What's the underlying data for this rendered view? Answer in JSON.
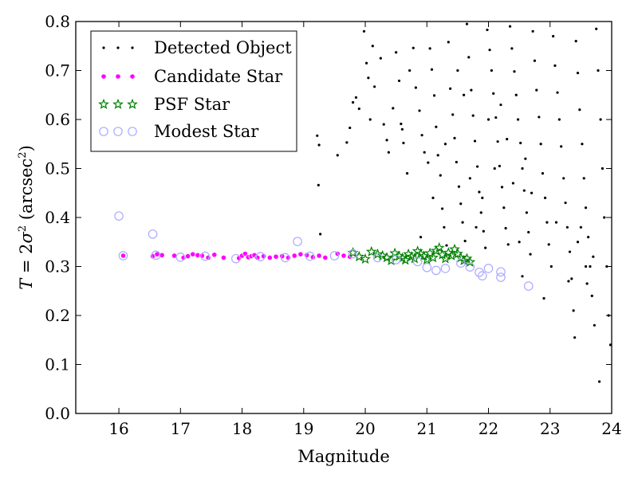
{
  "chart_data": {
    "type": "scatter",
    "xlabel": "Magnitude",
    "ylabel": "T = 2σ² (arcsec²)",
    "xlim": [
      15.3,
      24.0
    ],
    "ylim": [
      0.0,
      0.8
    ],
    "xticks": [
      16,
      17,
      18,
      19,
      20,
      21,
      22,
      23,
      24
    ],
    "yticks": [
      0.0,
      0.1,
      0.2,
      0.3,
      0.4,
      0.5,
      0.6,
      0.7,
      0.8
    ],
    "grid": false,
    "legend_position": "top-left",
    "legend": [
      {
        "label": "Detected Object",
        "marker": "dot",
        "color": "#000000"
      },
      {
        "label": "Candidate Star",
        "marker": "circle",
        "color": "#ff00ff"
      },
      {
        "label": "PSF Star",
        "marker": "star",
        "color": "#008000"
      },
      {
        "label": "Modest Star",
        "marker": "open-circle",
        "color": "#aaaaff"
      }
    ],
    "series": [
      {
        "name": "Detected Object",
        "points": [
          [
            19.22,
            0.567
          ],
          [
            19.25,
            0.548
          ],
          [
            19.24,
            0.466
          ],
          [
            19.27,
            0.366
          ],
          [
            19.55,
            0.527
          ],
          [
            19.7,
            0.553
          ],
          [
            19.75,
            0.583
          ],
          [
            19.8,
            0.635
          ],
          [
            19.85,
            0.645
          ],
          [
            19.9,
            0.622
          ],
          [
            19.98,
            0.78
          ],
          [
            20.02,
            0.715
          ],
          [
            20.05,
            0.685
          ],
          [
            20.08,
            0.6
          ],
          [
            20.12,
            0.75
          ],
          [
            20.15,
            0.667
          ],
          [
            20.25,
            0.725
          ],
          [
            20.3,
            0.59
          ],
          [
            20.35,
            0.558
          ],
          [
            20.38,
            0.533
          ],
          [
            20.45,
            0.623
          ],
          [
            20.5,
            0.737
          ],
          [
            20.55,
            0.679
          ],
          [
            20.58,
            0.591
          ],
          [
            20.62,
            0.552
          ],
          [
            20.68,
            0.49
          ],
          [
            20.72,
            0.7
          ],
          [
            20.78,
            0.746
          ],
          [
            20.82,
            0.665
          ],
          [
            20.88,
            0.618
          ],
          [
            20.92,
            0.568
          ],
          [
            20.96,
            0.533
          ],
          [
            21.02,
            0.512
          ],
          [
            21.05,
            0.745
          ],
          [
            21.08,
            0.702
          ],
          [
            21.12,
            0.649
          ],
          [
            21.15,
            0.585
          ],
          [
            21.18,
            0.527
          ],
          [
            21.22,
            0.486
          ],
          [
            21.25,
            0.418
          ],
          [
            21.28,
            0.38
          ],
          [
            21.32,
            0.343
          ],
          [
            21.35,
            0.758
          ],
          [
            21.38,
            0.663
          ],
          [
            21.42,
            0.61
          ],
          [
            21.45,
            0.562
          ],
          [
            21.48,
            0.513
          ],
          [
            21.52,
            0.463
          ],
          [
            21.55,
            0.428
          ],
          [
            21.58,
            0.39
          ],
          [
            21.62,
            0.352
          ],
          [
            21.65,
            0.795
          ],
          [
            21.68,
            0.727
          ],
          [
            21.72,
            0.66
          ],
          [
            21.75,
            0.608
          ],
          [
            21.78,
            0.556
          ],
          [
            21.82,
            0.504
          ],
          [
            21.85,
            0.452
          ],
          [
            21.88,
            0.41
          ],
          [
            21.92,
            0.372
          ],
          [
            21.95,
            0.338
          ],
          [
            21.98,
            0.783
          ],
          [
            22.02,
            0.742
          ],
          [
            22.05,
            0.7
          ],
          [
            22.08,
            0.653
          ],
          [
            22.12,
            0.604
          ],
          [
            22.15,
            0.555
          ],
          [
            22.18,
            0.505
          ],
          [
            22.22,
            0.462
          ],
          [
            22.25,
            0.42
          ],
          [
            22.28,
            0.378
          ],
          [
            22.32,
            0.345
          ],
          [
            22.35,
            0.79
          ],
          [
            22.38,
            0.745
          ],
          [
            22.42,
            0.698
          ],
          [
            22.45,
            0.65
          ],
          [
            22.48,
            0.6
          ],
          [
            22.52,
            0.552
          ],
          [
            22.55,
            0.5
          ],
          [
            22.58,
            0.455
          ],
          [
            22.62,
            0.41
          ],
          [
            22.65,
            0.37
          ],
          [
            22.68,
            0.325
          ],
          [
            22.72,
            0.78
          ],
          [
            22.75,
            0.72
          ],
          [
            22.78,
            0.66
          ],
          [
            22.82,
            0.605
          ],
          [
            22.85,
            0.55
          ],
          [
            22.88,
            0.49
          ],
          [
            22.92,
            0.44
          ],
          [
            22.95,
            0.39
          ],
          [
            22.98,
            0.345
          ],
          [
            23.02,
            0.3
          ],
          [
            23.05,
            0.77
          ],
          [
            23.08,
            0.71
          ],
          [
            23.12,
            0.655
          ],
          [
            23.15,
            0.6
          ],
          [
            23.18,
            0.545
          ],
          [
            23.22,
            0.48
          ],
          [
            23.25,
            0.43
          ],
          [
            23.28,
            0.38
          ],
          [
            23.32,
            0.33
          ],
          [
            23.35,
            0.275
          ],
          [
            23.38,
            0.21
          ],
          [
            23.42,
            0.76
          ],
          [
            23.45,
            0.695
          ],
          [
            23.48,
            0.62
          ],
          [
            23.52,
            0.55
          ],
          [
            23.55,
            0.48
          ],
          [
            23.58,
            0.42
          ],
          [
            23.62,
            0.36
          ],
          [
            23.65,
            0.3
          ],
          [
            23.68,
            0.24
          ],
          [
            23.72,
            0.18
          ],
          [
            23.75,
            0.785
          ],
          [
            23.78,
            0.7
          ],
          [
            23.82,
            0.6
          ],
          [
            23.85,
            0.5
          ],
          [
            23.88,
            0.4
          ],
          [
            23.92,
            0.3
          ],
          [
            23.95,
            0.2
          ],
          [
            23.98,
            0.14
          ],
          [
            23.8,
            0.065
          ],
          [
            23.4,
            0.155
          ],
          [
            23.6,
            0.265
          ],
          [
            23.7,
            0.32
          ],
          [
            23.5,
            0.38
          ],
          [
            23.3,
            0.27
          ],
          [
            23.45,
            0.35
          ],
          [
            23.58,
            0.3
          ],
          [
            22.9,
            0.235
          ],
          [
            22.55,
            0.28
          ],
          [
            22.7,
            0.45
          ],
          [
            22.6,
            0.52
          ],
          [
            22.4,
            0.47
          ],
          [
            22.3,
            0.56
          ],
          [
            22.2,
            0.63
          ],
          [
            22.1,
            0.5
          ],
          [
            21.9,
            0.44
          ],
          [
            21.7,
            0.48
          ],
          [
            20.6,
            0.58
          ],
          [
            20.9,
            0.36
          ],
          [
            21.1,
            0.44
          ],
          [
            21.3,
            0.55
          ],
          [
            21.6,
            0.65
          ],
          [
            21.5,
            0.7
          ],
          [
            22.0,
            0.6
          ],
          [
            21.8,
            0.38
          ],
          [
            22.5,
            0.35
          ],
          [
            23.1,
            0.39
          ]
        ]
      },
      {
        "name": "Candidate Star",
        "points": [
          [
            16.07,
            0.322
          ],
          [
            16.55,
            0.321
          ],
          [
            16.62,
            0.325
          ],
          [
            16.7,
            0.323
          ],
          [
            16.9,
            0.322
          ],
          [
            17.05,
            0.318
          ],
          [
            17.12,
            0.321
          ],
          [
            17.2,
            0.325
          ],
          [
            17.28,
            0.323
          ],
          [
            17.35,
            0.322
          ],
          [
            17.45,
            0.318
          ],
          [
            17.55,
            0.324
          ],
          [
            17.7,
            0.318
          ],
          [
            17.95,
            0.317
          ],
          [
            18.0,
            0.322
          ],
          [
            18.05,
            0.326
          ],
          [
            18.1,
            0.319
          ],
          [
            18.15,
            0.321
          ],
          [
            18.2,
            0.323
          ],
          [
            18.25,
            0.318
          ],
          [
            18.35,
            0.321
          ],
          [
            18.45,
            0.318
          ],
          [
            18.55,
            0.32
          ],
          [
            18.65,
            0.321
          ],
          [
            18.75,
            0.318
          ],
          [
            18.85,
            0.322
          ],
          [
            18.95,
            0.325
          ],
          [
            19.05,
            0.323
          ],
          [
            19.15,
            0.319
          ],
          [
            19.25,
            0.322
          ],
          [
            19.35,
            0.318
          ],
          [
            19.55,
            0.326
          ],
          [
            19.65,
            0.322
          ],
          [
            19.75,
            0.32
          ]
        ]
      },
      {
        "name": "PSF Star",
        "points": [
          [
            19.8,
            0.328
          ],
          [
            19.9,
            0.32
          ],
          [
            20.0,
            0.315
          ],
          [
            20.1,
            0.33
          ],
          [
            20.2,
            0.325
          ],
          [
            20.28,
            0.322
          ],
          [
            20.35,
            0.318
          ],
          [
            20.42,
            0.312
          ],
          [
            20.48,
            0.327
          ],
          [
            20.55,
            0.321
          ],
          [
            20.6,
            0.317
          ],
          [
            20.65,
            0.313
          ],
          [
            20.7,
            0.325
          ],
          [
            20.75,
            0.32
          ],
          [
            20.8,
            0.316
          ],
          [
            20.85,
            0.331
          ],
          [
            20.9,
            0.326
          ],
          [
            20.95,
            0.321
          ],
          [
            21.0,
            0.314
          ],
          [
            21.05,
            0.327
          ],
          [
            21.1,
            0.318
          ],
          [
            21.15,
            0.332
          ],
          [
            21.2,
            0.338
          ],
          [
            21.25,
            0.324
          ],
          [
            21.3,
            0.316
          ],
          [
            21.35,
            0.328
          ],
          [
            21.4,
            0.322
          ],
          [
            21.45,
            0.335
          ],
          [
            21.5,
            0.326
          ],
          [
            21.55,
            0.318
          ],
          [
            21.6,
            0.312
          ],
          [
            21.65,
            0.316
          ],
          [
            21.7,
            0.309
          ]
        ]
      },
      {
        "name": "Modest Star",
        "points": [
          [
            16.0,
            0.403
          ],
          [
            16.55,
            0.366
          ],
          [
            18.9,
            0.351
          ],
          [
            16.07,
            0.322
          ],
          [
            16.6,
            0.323
          ],
          [
            17.0,
            0.319
          ],
          [
            17.4,
            0.321
          ],
          [
            17.9,
            0.316
          ],
          [
            18.3,
            0.32
          ],
          [
            18.7,
            0.318
          ],
          [
            19.1,
            0.321
          ],
          [
            19.5,
            0.322
          ],
          [
            19.8,
            0.326
          ],
          [
            20.2,
            0.318
          ],
          [
            20.5,
            0.314
          ],
          [
            20.85,
            0.31
          ],
          [
            21.0,
            0.298
          ],
          [
            21.15,
            0.292
          ],
          [
            21.3,
            0.296
          ],
          [
            21.55,
            0.307
          ],
          [
            21.7,
            0.299
          ],
          [
            21.85,
            0.288
          ],
          [
            21.9,
            0.281
          ],
          [
            22.0,
            0.296
          ],
          [
            22.2,
            0.289
          ],
          [
            22.2,
            0.278
          ],
          [
            22.65,
            0.26
          ]
        ]
      }
    ]
  }
}
